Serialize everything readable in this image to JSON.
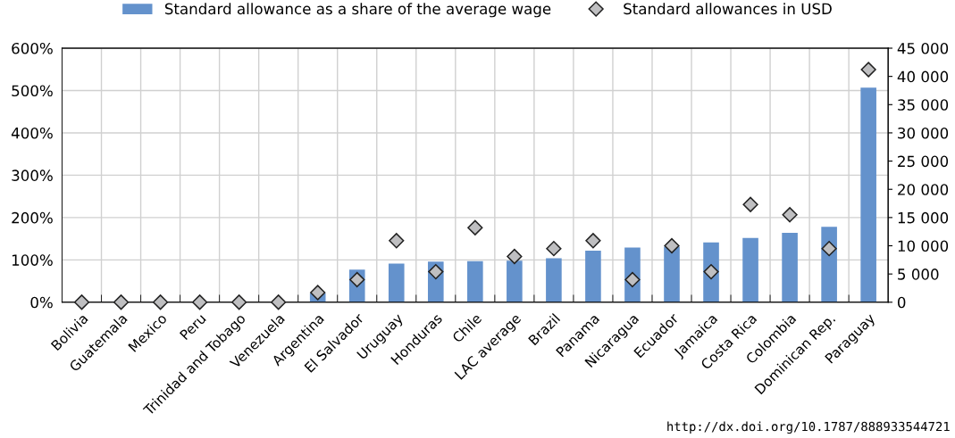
{
  "chart_data": {
    "type": "bar",
    "categories": [
      "Bolivia",
      "Guatemala",
      "Mexico",
      "Peru",
      "Trinidad and Tobago",
      "Venezuela",
      "Argentina",
      "El Salvador",
      "Uruguay",
      "Honduras",
      "Chile",
      "LAC average",
      "Brazil",
      "Panama",
      "Nicaragua",
      "Ecuador",
      "Jamaica",
      "Costa Rica",
      "Colombia",
      "Dominican Rep.",
      "Paraguay"
    ],
    "series": [
      {
        "name": "Standard allowance as a share of the average wage",
        "type": "bar",
        "color": "#6492cc",
        "values": [
          0,
          0,
          0,
          0,
          0,
          0,
          21,
          77,
          91,
          96,
          97,
          98,
          104,
          122,
          129,
          131,
          141,
          152,
          164,
          178,
          507
        ]
      },
      {
        "name": "Standard allowances in USD",
        "type": "scatter",
        "axis": "y2",
        "color": "#bfbfc1",
        "values": [
          0,
          0,
          0,
          0,
          0,
          0,
          1700,
          4000,
          10900,
          5400,
          13200,
          8100,
          9500,
          10900,
          4000,
          10000,
          5400,
          17300,
          15500,
          9500,
          41200
        ]
      }
    ],
    "ylim": [
      0,
      600
    ],
    "yticks": [
      {
        "value": 0,
        "label": "0%"
      },
      {
        "value": 100,
        "label": "100%"
      },
      {
        "value": 200,
        "label": "200%"
      },
      {
        "value": 300,
        "label": "300%"
      },
      {
        "value": 400,
        "label": "400%"
      },
      {
        "value": 500,
        "label": "500%"
      },
      {
        "value": 600,
        "label": "600%"
      }
    ],
    "y2lim": [
      0,
      45000
    ],
    "y2ticks": [
      {
        "value": 0,
        "label": "0"
      },
      {
        "value": 5000,
        "label": "5 000"
      },
      {
        "value": 10000,
        "label": "10 000"
      },
      {
        "value": 15000,
        "label": "15 000"
      },
      {
        "value": 20000,
        "label": "20 000"
      },
      {
        "value": 25000,
        "label": "25 000"
      },
      {
        "value": 30000,
        "label": "30 000"
      },
      {
        "value": 35000,
        "label": "35 000"
      },
      {
        "value": 40000,
        "label": "40 000"
      },
      {
        "value": 45000,
        "label": "45 000"
      }
    ],
    "grid": true,
    "legend": "top",
    "marker": "diamond",
    "annotations": [
      "http://dx.doi.org/10.1787/888933544721"
    ]
  }
}
